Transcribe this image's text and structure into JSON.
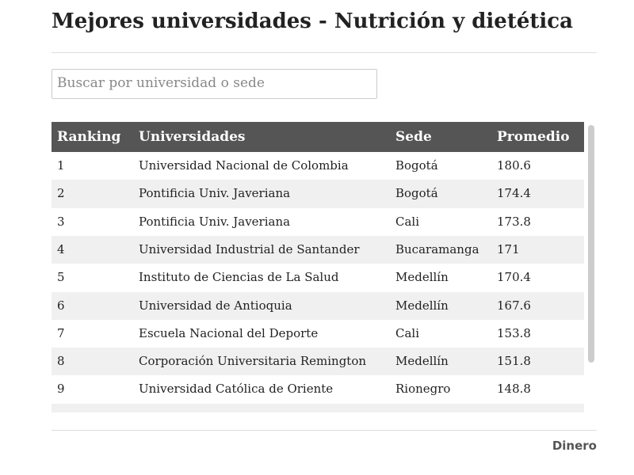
{
  "header": {
    "title": "Mejores universidades - Nutrición y dietética"
  },
  "search": {
    "placeholder": "Buscar por universidad o sede"
  },
  "table": {
    "columns": [
      "Ranking",
      "Universidades",
      "Sede",
      "Promedio"
    ],
    "rows": [
      [
        1,
        "Universidad Nacional de Colombia",
        "Bogotá",
        180.6
      ],
      [
        2,
        "Pontificia Univ. Javeriana",
        "Bogotá",
        174.4
      ],
      [
        3,
        "Pontificia Univ. Javeriana",
        "Cali",
        173.8
      ],
      [
        4,
        "Universidad Industrial de Santander",
        "Bucaramanga",
        171
      ],
      [
        5,
        "Instituto de Ciencias de La Salud",
        "Medellín",
        170.4
      ],
      [
        6,
        "Universidad de Antioquia",
        "Medellín",
        167.6
      ],
      [
        7,
        "Escuela Nacional del Deporte",
        "Cali",
        153.8
      ],
      [
        8,
        "Corporación Universitaria Remington",
        "Medellín",
        151.8
      ],
      [
        9,
        "Universidad Católica de Oriente",
        "Rionegro",
        148.8
      ]
    ]
  },
  "footer": {
    "source": "Dinero"
  }
}
